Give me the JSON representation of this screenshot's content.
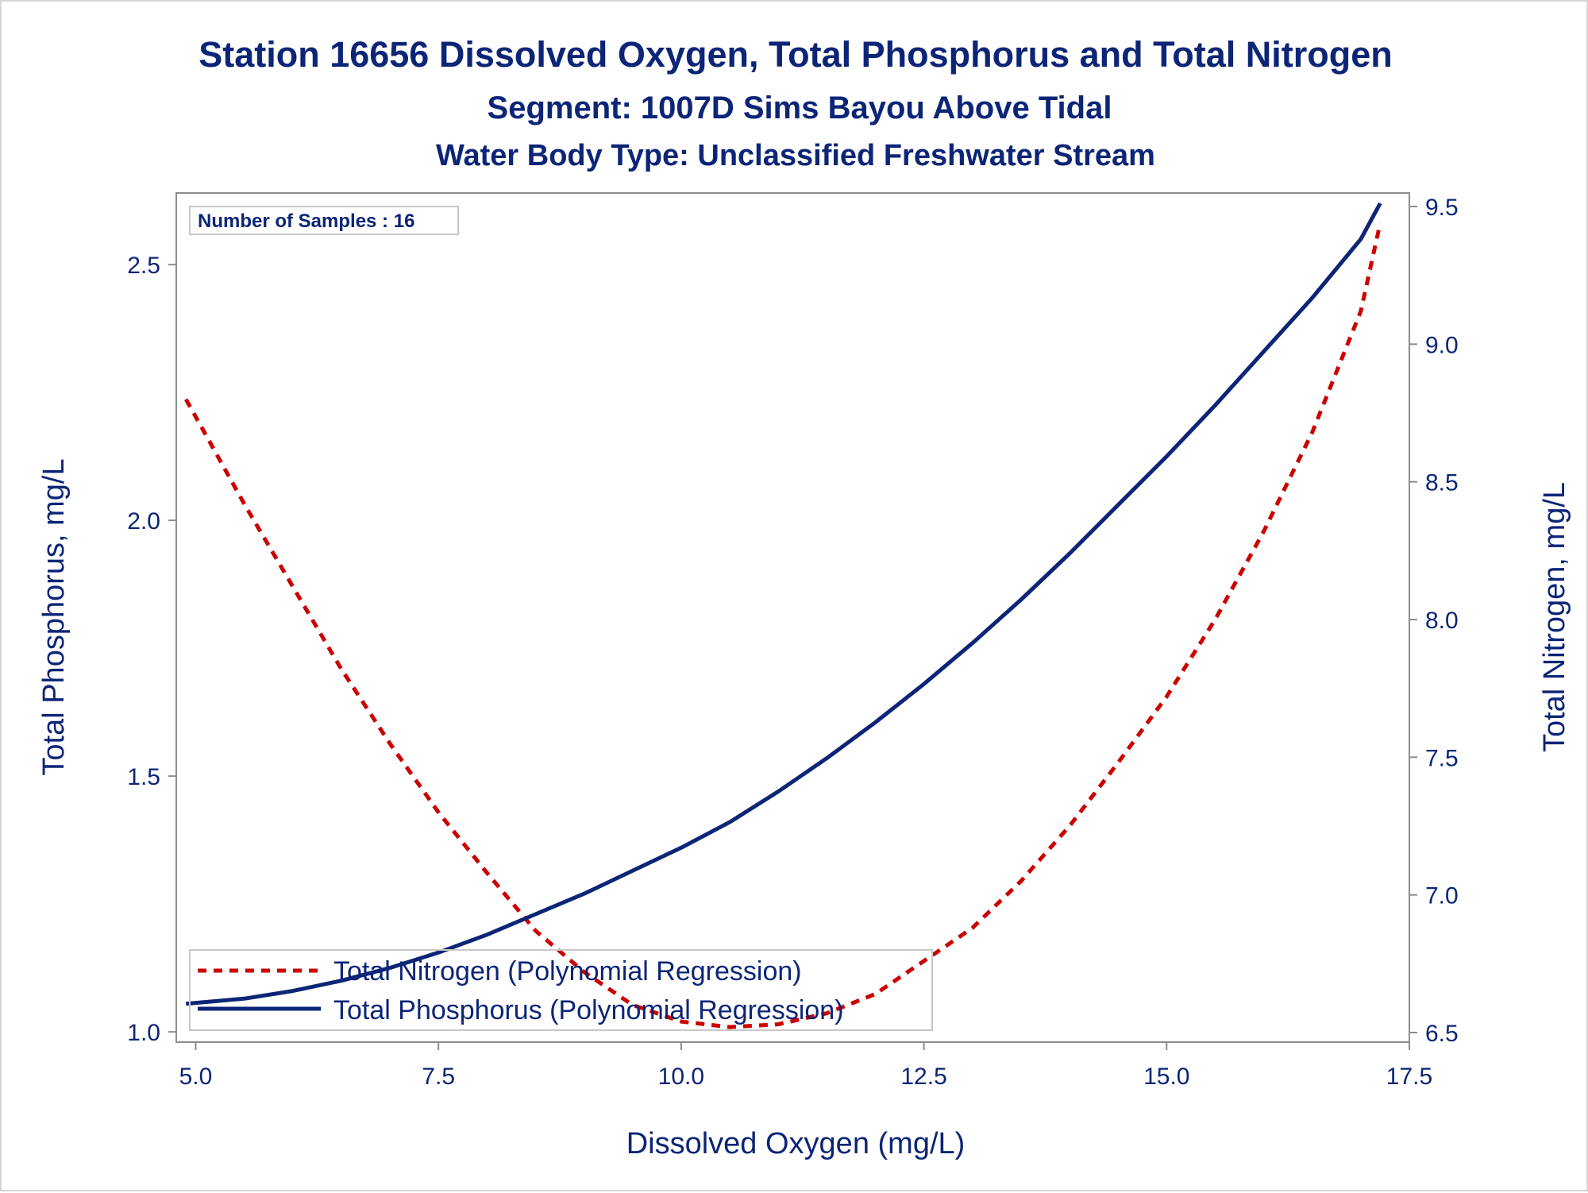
{
  "chart_data": {
    "type": "line",
    "title": "Station 16656  Dissolved Oxygen, Total Phosphorus and Total Nitrogen",
    "subtitle": "Segment: 1007D  Sims Bayou Above Tidal",
    "subtitle2": "Water Body Type: Unclassified Freshwater Stream",
    "xlabel": "Dissolved Oxygen (mg/L)",
    "ylabel_left": "Total Phosphorus, mg/L",
    "ylabel_right": "Total Nitrogen, mg/L",
    "xlim": [
      4.8,
      17.5
    ],
    "ylim_left": [
      0.98,
      2.64
    ],
    "ylim_right": [
      6.5,
      9.5
    ],
    "xticks": [
      "5.0",
      "7.5",
      "10.0",
      "12.5",
      "15.0",
      "17.5"
    ],
    "yticks_left": [
      "1.0",
      "1.5",
      "2.0",
      "2.5"
    ],
    "yticks_right": [
      "6.5",
      "7.0",
      "7.5",
      "8.0",
      "8.5",
      "9.0",
      "9.5"
    ],
    "annotation": "Number of Samples : 16",
    "legend_position": "bottom-left",
    "grid": false,
    "series": [
      {
        "name": "Total Nitrogen (Polynomial Regression)",
        "axis": "right",
        "style": "dashed",
        "color": "#cc0000",
        "x": [
          4.9,
          5.5,
          6.0,
          6.5,
          7.0,
          7.5,
          8.0,
          8.5,
          9.0,
          9.5,
          10.0,
          10.5,
          11.0,
          11.5,
          12.0,
          12.5,
          13.0,
          13.5,
          14.0,
          14.5,
          15.0,
          15.5,
          16.0,
          16.5,
          17.0,
          17.2
        ],
        "values": [
          8.8,
          8.42,
          8.12,
          7.82,
          7.55,
          7.3,
          7.08,
          6.87,
          6.72,
          6.6,
          6.54,
          6.52,
          6.53,
          6.57,
          6.64,
          6.76,
          6.88,
          7.05,
          7.25,
          7.48,
          7.72,
          8.0,
          8.32,
          8.68,
          9.12,
          9.44
        ]
      },
      {
        "name": "Total Phosphorus (Polynomial Regression)",
        "axis": "left",
        "style": "solid",
        "color": "#0c2577",
        "x": [
          4.9,
          5.5,
          6.0,
          6.5,
          7.0,
          7.5,
          8.0,
          8.5,
          9.0,
          9.5,
          10.0,
          10.5,
          11.0,
          11.5,
          12.0,
          12.5,
          13.0,
          13.5,
          14.0,
          14.5,
          15.0,
          15.5,
          16.0,
          16.5,
          17.0,
          17.2
        ],
        "values": [
          1.055,
          1.065,
          1.08,
          1.1,
          1.125,
          1.155,
          1.19,
          1.23,
          1.27,
          1.315,
          1.36,
          1.41,
          1.47,
          1.535,
          1.605,
          1.68,
          1.76,
          1.845,
          1.935,
          2.03,
          2.125,
          2.225,
          2.33,
          2.435,
          2.55,
          2.62
        ]
      }
    ]
  }
}
